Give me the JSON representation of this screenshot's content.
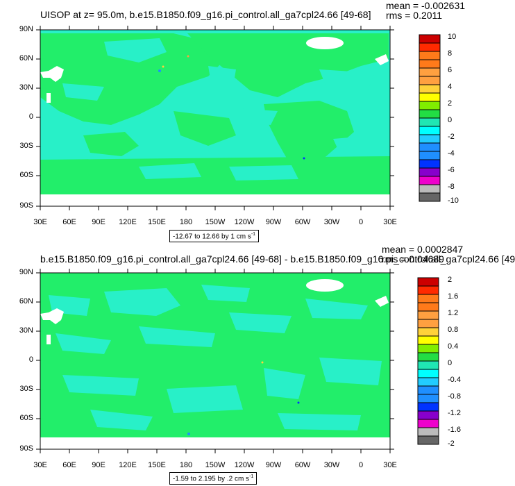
{
  "panel1": {
    "title": "UISOP at z=  95.0m, b.e15.B1850.f09_g16.pi_control.all_ga7cpl24.66 [49-68]",
    "mean_label": "mean = -0.002631",
    "rms_label": "rms = 0.2011",
    "contour_info": "-12.67 to 12.66 by 1 cm s",
    "contour_unit_exp": "-1",
    "colorbar_labels": [
      "10",
      "8",
      "6",
      "4",
      "2",
      "0",
      "-2",
      "-4",
      "-6",
      "-8",
      "-10"
    ]
  },
  "panel2": {
    "title": "b.e15.B1850.f09_g16.pi_control.all_ga7cpl24.66 [49-68] - b.e15.B1850.f09_g16.pi_control.all_ga7cpl24.66 [49",
    "mean_label": "mean = 0.0002847",
    "rms_label": "rms = 0.04689",
    "contour_info": "-1.59 to 2.195 by .2 cm s",
    "contour_unit_exp": "-1",
    "colorbar_labels": [
      "2",
      "1.6",
      "1.2",
      "0.8",
      "0.4",
      "0",
      "-0.4",
      "-0.8",
      "-1.2",
      "-1.6",
      "-2"
    ]
  },
  "lat_labels": [
    "90N",
    "60N",
    "30N",
    "0",
    "30S",
    "60S",
    "90S"
  ],
  "lon_labels": [
    "30E",
    "60E",
    "90E",
    "120E",
    "150E",
    "180",
    "150W",
    "120W",
    "90W",
    "60W",
    "30W",
    "0",
    "30E"
  ],
  "colors": {
    "land_green": "#22ee6a",
    "ocean_cyan": "#28f0c8",
    "palette": [
      "#cc0000",
      "#ff2a00",
      "#ff7a1a",
      "#ffa040",
      "#ffd23a",
      "#ffff00",
      "#80ee00",
      "#22dd44",
      "#20e6b4",
      "#00ffff",
      "#22ccff",
      "#1f8fff",
      "#0033ff",
      "#8800cc",
      "#ee00cc",
      "#bbbbbb",
      "#666666"
    ]
  }
}
